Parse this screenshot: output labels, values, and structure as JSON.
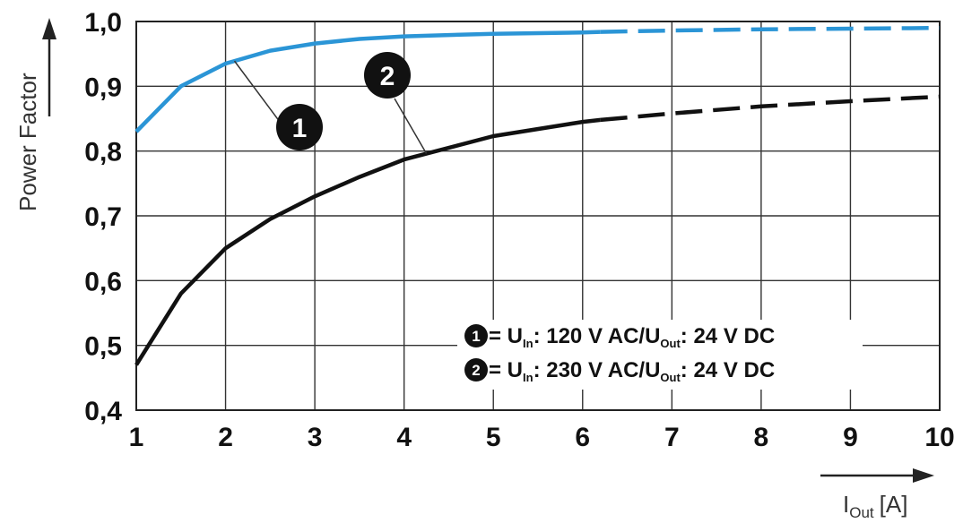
{
  "chart_data": {
    "type": "line",
    "xlabel": "I",
    "xlabel_sub": "Out",
    "xlabel_unit": "[A]",
    "ylabel": "Power Factor",
    "xlim": [
      1,
      10
    ],
    "ylim": [
      0.4,
      1.0
    ],
    "x_ticks": [
      "1",
      "2",
      "3",
      "4",
      "5",
      "6",
      "7",
      "8",
      "9",
      "10"
    ],
    "y_ticks": [
      "0,4",
      "0,5",
      "0,6",
      "0,7",
      "0,8",
      "0,9",
      "1,0"
    ],
    "grid": true,
    "x": [
      1,
      1.5,
      2,
      2.5,
      3,
      3.5,
      4,
      5,
      6,
      6.2,
      7,
      8,
      9,
      10
    ],
    "series": [
      {
        "marker": "1",
        "color": "#2b95d6",
        "solid_until": 6.2,
        "values": [
          0.83,
          0.9,
          0.935,
          0.955,
          0.966,
          0.973,
          0.977,
          0.981,
          0.983,
          0.984,
          0.986,
          0.988,
          0.989,
          0.99
        ]
      },
      {
        "marker": "2",
        "color": "#111111",
        "solid_until": 6.2,
        "values": [
          0.47,
          0.58,
          0.65,
          0.695,
          0.73,
          0.76,
          0.787,
          0.823,
          0.845,
          0.848,
          0.858,
          0.869,
          0.877,
          0.884
        ]
      }
    ],
    "legend": {
      "placement": "bottom-right",
      "entries": [
        {
          "marker": "1",
          "prefix": "= U",
          "sub1": "In",
          "middle": ": 120 V AC/U",
          "sub2": "Out",
          "suffix": ": 24 V DC"
        },
        {
          "marker": "2",
          "prefix": "= U",
          "sub1": "In",
          "middle": ": 230 V AC/U",
          "sub2": "Out",
          "suffix": ": 24 V DC"
        }
      ]
    }
  }
}
